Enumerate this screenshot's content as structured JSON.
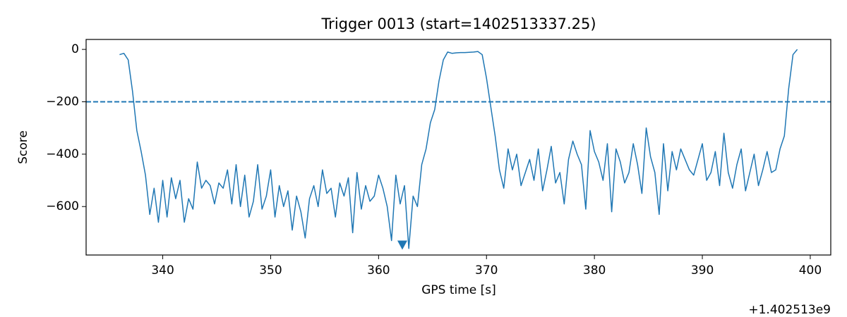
{
  "chart_data": {
    "type": "line",
    "title": "Trigger 0013 (start=1402513337.25)",
    "x_label": "GPS time [s]",
    "y_label": "Score",
    "x_offset_label": "+1.402513e9",
    "xlim": [
      332.9,
      401.9
    ],
    "ylim": [
      -785,
      38
    ],
    "xticks": [
      340,
      350,
      360,
      370,
      380,
      390,
      400
    ],
    "yticks": [
      {
        "value": -600,
        "label": "−600"
      },
      {
        "value": -400,
        "label": "−400"
      },
      {
        "value": -200,
        "label": "−200"
      },
      0
    ],
    "x": [
      336.0,
      336.4,
      336.8,
      337.2,
      337.6,
      338.0,
      338.4,
      338.8,
      339.2,
      339.6,
      340.0,
      340.4,
      340.8,
      341.2,
      341.6,
      342.0,
      342.4,
      342.8,
      343.2,
      343.6,
      344.0,
      344.4,
      344.8,
      345.2,
      345.6,
      346.0,
      346.4,
      346.8,
      347.2,
      347.6,
      348.0,
      348.4,
      348.8,
      349.2,
      349.6,
      350.0,
      350.4,
      350.8,
      351.2,
      351.6,
      352.0,
      352.4,
      352.8,
      353.2,
      353.6,
      354.0,
      354.4,
      354.8,
      355.2,
      355.6,
      356.0,
      356.4,
      356.8,
      357.2,
      357.6,
      358.0,
      358.4,
      358.8,
      359.2,
      359.6,
      360.0,
      360.4,
      360.8,
      361.2,
      361.6,
      362.0,
      362.4,
      362.8,
      363.2,
      363.6,
      364.0,
      364.4,
      364.8,
      365.2,
      365.6,
      366.0,
      366.4,
      366.8,
      367.2,
      367.6,
      368.0,
      368.4,
      368.8,
      369.2,
      369.6,
      370.0,
      370.4,
      370.8,
      371.2,
      371.6,
      372.0,
      372.4,
      372.8,
      373.2,
      373.6,
      374.0,
      374.4,
      374.8,
      375.2,
      375.6,
      376.0,
      376.4,
      376.8,
      377.2,
      377.6,
      378.0,
      378.4,
      378.8,
      379.2,
      379.6,
      380.0,
      380.4,
      380.8,
      381.2,
      381.6,
      382.0,
      382.4,
      382.8,
      383.2,
      383.6,
      384.0,
      384.4,
      384.8,
      385.2,
      385.6,
      386.0,
      386.4,
      386.8,
      387.2,
      387.6,
      388.0,
      388.4,
      388.8,
      389.2,
      389.6,
      390.0,
      390.4,
      390.8,
      391.2,
      391.6,
      392.0,
      392.4,
      392.8,
      393.2,
      393.6,
      394.0,
      394.4,
      394.8,
      395.2,
      395.6,
      396.0,
      396.4,
      396.8,
      397.2,
      397.6,
      398.0,
      398.4,
      398.8
    ],
    "series": [
      {
        "color": "#1f77b4",
        "values": [
          -20,
          -15,
          -40,
          -160,
          -310,
          -390,
          -480,
          -630,
          -530,
          -660,
          -500,
          -640,
          -490,
          -570,
          -500,
          -660,
          -570,
          -610,
          -430,
          -530,
          -500,
          -520,
          -590,
          -510,
          -530,
          -460,
          -590,
          -440,
          -600,
          -480,
          -640,
          -580,
          -440,
          -610,
          -560,
          -460,
          -640,
          -520,
          -600,
          -540,
          -690,
          -560,
          -620,
          -720,
          -570,
          -520,
          -600,
          -460,
          -550,
          -530,
          -640,
          -510,
          -560,
          -490,
          -700,
          -470,
          -610,
          -520,
          -580,
          -560,
          -480,
          -530,
          -600,
          -730,
          -480,
          -590,
          -520,
          -760,
          -560,
          -600,
          -440,
          -380,
          -280,
          -230,
          -120,
          -40,
          -10,
          -15,
          -13,
          -12,
          -12,
          -11,
          -10,
          -8,
          -20,
          -110,
          -220,
          -330,
          -460,
          -530,
          -380,
          -460,
          -400,
          -520,
          -470,
          -420,
          -500,
          -380,
          -540,
          -460,
          -370,
          -510,
          -470,
          -590,
          -420,
          -350,
          -400,
          -440,
          -610,
          -310,
          -390,
          -430,
          -500,
          -360,
          -620,
          -380,
          -430,
          -510,
          -470,
          -360,
          -440,
          -550,
          -300,
          -410,
          -470,
          -630,
          -360,
          -540,
          -390,
          -460,
          -380,
          -420,
          -460,
          -480,
          -420,
          -360,
          -500,
          -470,
          -390,
          -520,
          -320,
          -470,
          -530,
          -440,
          -380,
          -540,
          -470,
          -400,
          -520,
          -460,
          -390,
          -470,
          -460,
          -380,
          -330,
          -150,
          -20,
          0
        ]
      }
    ],
    "threshold": {
      "y": -200,
      "color": "#1f77b4"
    },
    "marker": {
      "x": 362.2,
      "y": -746,
      "color": "#1f77b4"
    }
  }
}
